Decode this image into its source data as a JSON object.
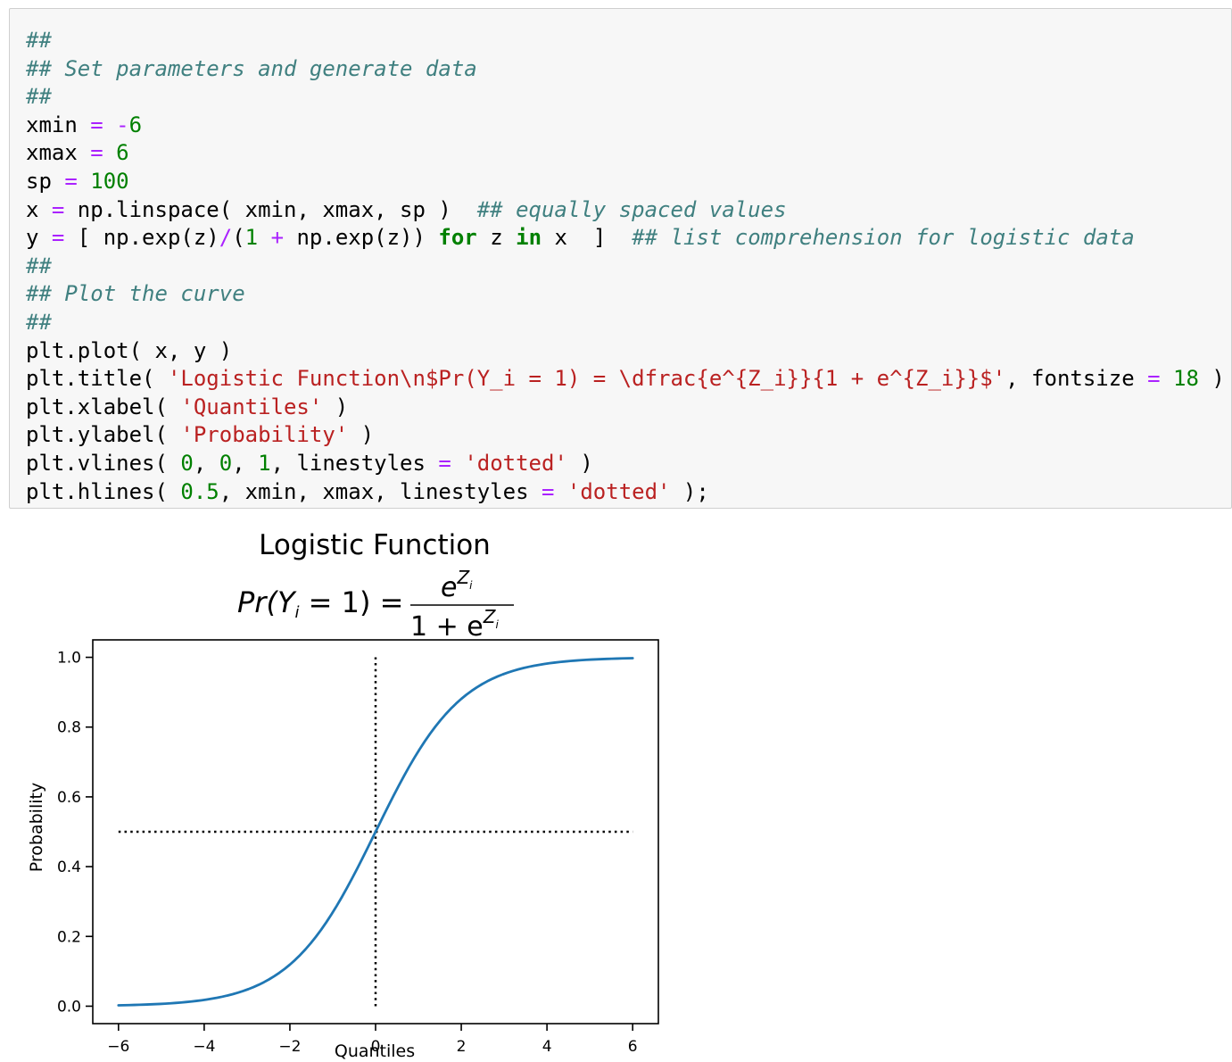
{
  "code_cell": {
    "lines": [
      [
        {
          "t": "comment",
          "v": "##"
        }
      ],
      [
        {
          "t": "comment",
          "v": "## Set parameters and generate data"
        }
      ],
      [
        {
          "t": "comment",
          "v": "##"
        }
      ],
      [
        {
          "t": "plain",
          "v": "xmin "
        },
        {
          "t": "op",
          "v": "="
        },
        {
          "t": "plain",
          "v": " "
        },
        {
          "t": "op",
          "v": "-"
        },
        {
          "t": "num",
          "v": "6"
        }
      ],
      [
        {
          "t": "plain",
          "v": "xmax "
        },
        {
          "t": "op",
          "v": "="
        },
        {
          "t": "plain",
          "v": " "
        },
        {
          "t": "num",
          "v": "6"
        }
      ],
      [
        {
          "t": "plain",
          "v": "sp "
        },
        {
          "t": "op",
          "v": "="
        },
        {
          "t": "plain",
          "v": " "
        },
        {
          "t": "num",
          "v": "100"
        }
      ],
      [
        {
          "t": "plain",
          "v": "x "
        },
        {
          "t": "op",
          "v": "="
        },
        {
          "t": "plain",
          "v": " np.linspace( xmin, xmax, sp )  "
        },
        {
          "t": "comment",
          "v": "## equally spaced values"
        }
      ],
      [
        {
          "t": "plain",
          "v": "y "
        },
        {
          "t": "op",
          "v": "="
        },
        {
          "t": "plain",
          "v": " [ np.exp(z)"
        },
        {
          "t": "op",
          "v": "/"
        },
        {
          "t": "plain",
          "v": "("
        },
        {
          "t": "num",
          "v": "1"
        },
        {
          "t": "plain",
          "v": " "
        },
        {
          "t": "op",
          "v": "+"
        },
        {
          "t": "plain",
          "v": " np.exp(z)) "
        },
        {
          "t": "kw",
          "v": "for"
        },
        {
          "t": "plain",
          "v": " z "
        },
        {
          "t": "kw",
          "v": "in"
        },
        {
          "t": "plain",
          "v": " x  ]  "
        },
        {
          "t": "comment",
          "v": "## list comprehension for logistic data"
        }
      ],
      [
        {
          "t": "comment",
          "v": "##"
        }
      ],
      [
        {
          "t": "comment",
          "v": "## Plot the curve"
        }
      ],
      [
        {
          "t": "comment",
          "v": "##"
        }
      ],
      [
        {
          "t": "plain",
          "v": "plt.plot( x, y )"
        }
      ],
      [
        {
          "t": "plain",
          "v": "plt.title( "
        },
        {
          "t": "str",
          "v": "'Logistic Function\\n$Pr(Y_i = 1) = \\dfrac{e^{Z_i}}{1 + e^{Z_i}}$'"
        },
        {
          "t": "plain",
          "v": ", fontsize "
        },
        {
          "t": "op",
          "v": "="
        },
        {
          "t": "plain",
          "v": " "
        },
        {
          "t": "num",
          "v": "18"
        },
        {
          "t": "plain",
          "v": " )"
        }
      ],
      [
        {
          "t": "plain",
          "v": "plt.xlabel( "
        },
        {
          "t": "str",
          "v": "'Quantiles'"
        },
        {
          "t": "plain",
          "v": " )"
        }
      ],
      [
        {
          "t": "plain",
          "v": "plt.ylabel( "
        },
        {
          "t": "str",
          "v": "'Probability'"
        },
        {
          "t": "plain",
          "v": " )"
        }
      ],
      [
        {
          "t": "plain",
          "v": "plt.vlines( "
        },
        {
          "t": "num",
          "v": "0"
        },
        {
          "t": "plain",
          "v": ", "
        },
        {
          "t": "num",
          "v": "0"
        },
        {
          "t": "plain",
          "v": ", "
        },
        {
          "t": "num",
          "v": "1"
        },
        {
          "t": "plain",
          "v": ", linestyles "
        },
        {
          "t": "op",
          "v": "="
        },
        {
          "t": "plain",
          "v": " "
        },
        {
          "t": "str",
          "v": "'dotted'"
        },
        {
          "t": "plain",
          "v": " )"
        }
      ],
      [
        {
          "t": "plain",
          "v": "plt.hlines( "
        },
        {
          "t": "num",
          "v": "0.5"
        },
        {
          "t": "plain",
          "v": ", xmin, xmax, linestyles "
        },
        {
          "t": "op",
          "v": "="
        },
        {
          "t": "plain",
          "v": " "
        },
        {
          "t": "str",
          "v": "'dotted'"
        },
        {
          "t": "plain",
          "v": " );"
        }
      ]
    ]
  },
  "chart_data": {
    "type": "line",
    "title": "Logistic Function",
    "formula": {
      "lhs_prefix": "Pr(Y",
      "lhs_sub": "i",
      "lhs_suffix": " = 1) =",
      "num_base": "e",
      "num_sup": "Z",
      "num_sup_sub": "i",
      "den_prefix": "1 + e",
      "den_sup": "Z",
      "den_sup_sub": "i"
    },
    "xlabel": "Quantiles",
    "ylabel": "Probability",
    "xlim": [
      -6.6,
      6.6
    ],
    "ylim": [
      -0.05,
      1.05
    ],
    "xticks": [
      -6,
      -4,
      -2,
      0,
      2,
      4,
      6
    ],
    "xtick_labels": [
      "−6",
      "−4",
      "−2",
      "0",
      "2",
      "4",
      "6"
    ],
    "yticks": [
      0.0,
      0.2,
      0.4,
      0.6,
      0.8,
      1.0
    ],
    "ytick_labels": [
      "0.0",
      "0.2",
      "0.4",
      "0.6",
      "0.8",
      "1.0"
    ],
    "series": [
      {
        "function": "logistic",
        "xmin": -6,
        "xmax": 6,
        "points": 100,
        "color": "#1f77b4"
      }
    ],
    "vline": {
      "x": 0,
      "ymin": 0,
      "ymax": 1,
      "style": "dotted"
    },
    "hline": {
      "y": 0.5,
      "xmin": -6,
      "xmax": 6,
      "style": "dotted"
    },
    "grid": false
  }
}
